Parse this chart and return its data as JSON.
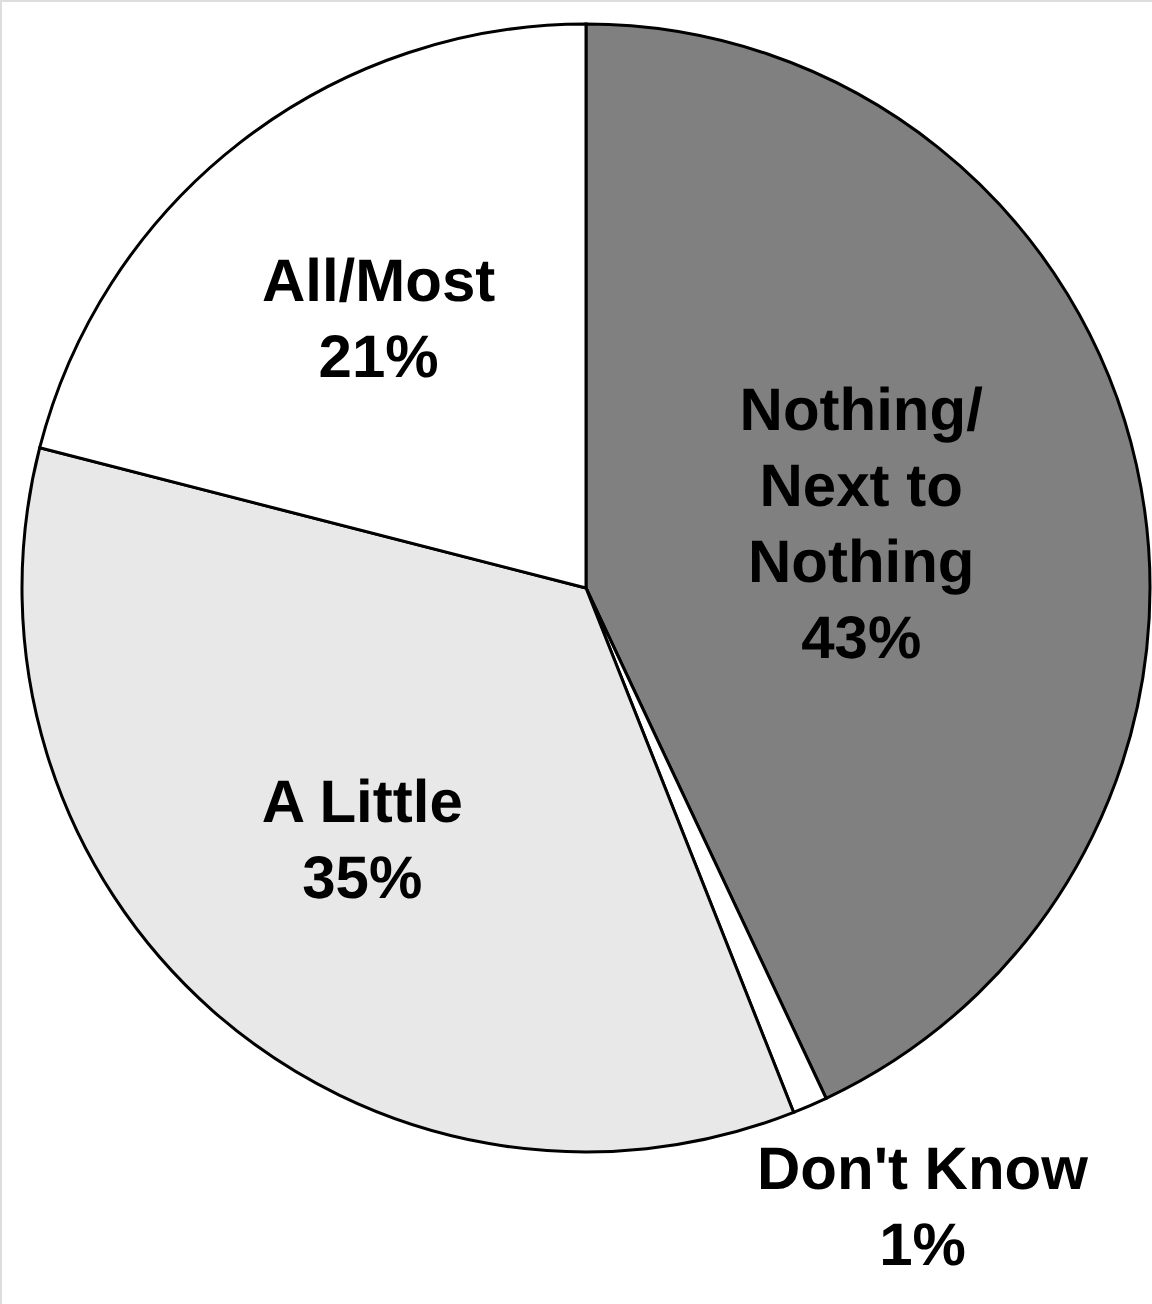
{
  "chart_data": {
    "type": "pie",
    "categories": [
      "Nothing/\nNext to\nNothing",
      "Don't Know",
      "A Little",
      "All/Most"
    ],
    "values": [
      43,
      1,
      35,
      21
    ],
    "colors": [
      "#808080",
      "#ffffff",
      "#e8e8e8",
      "#ffffff"
    ],
    "value_labels": [
      "43%",
      "1%",
      "35%",
      "21%"
    ]
  }
}
